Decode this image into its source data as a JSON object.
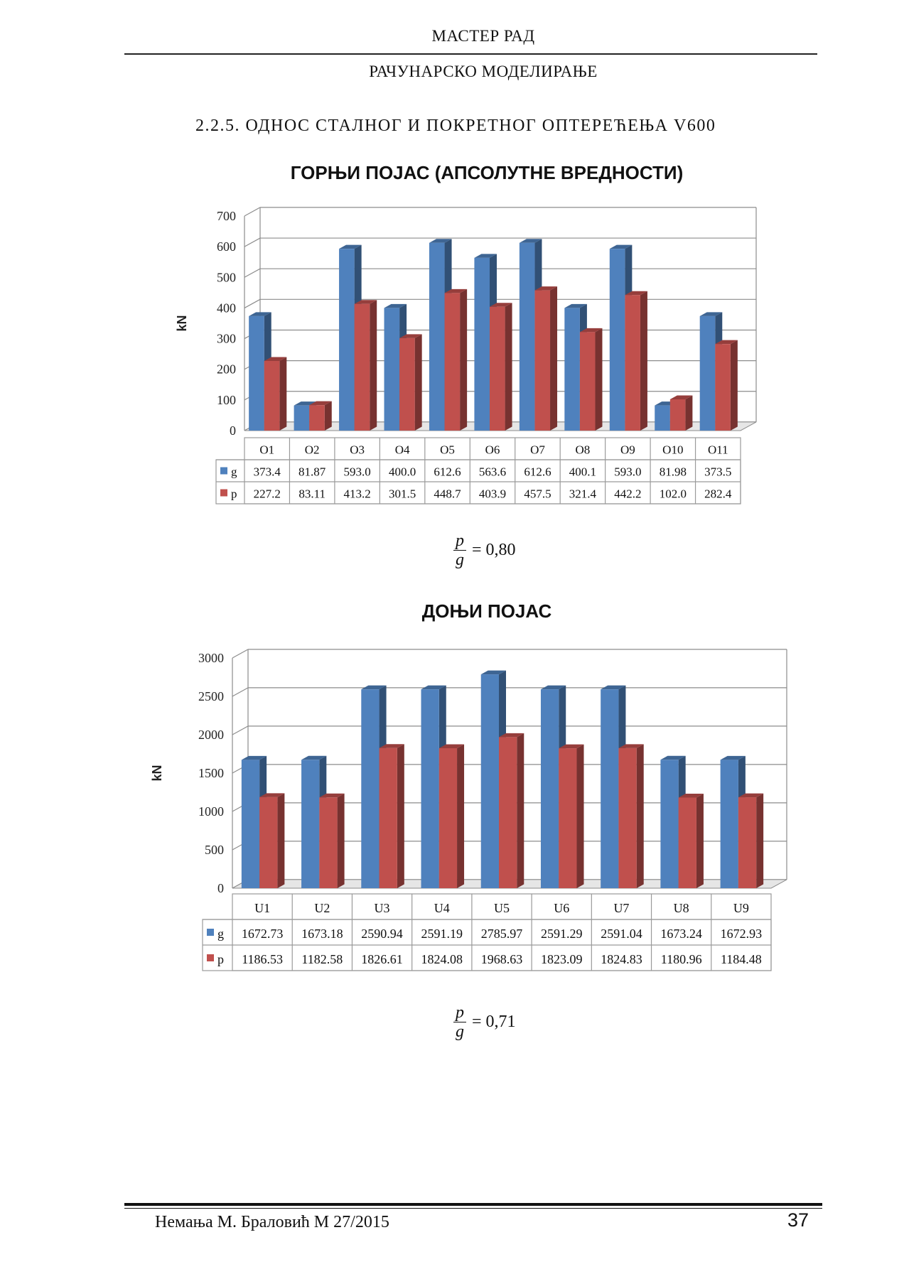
{
  "header": {
    "title": "МАСТЕР РАД",
    "subtitle": "РАЧУНАРСКО МОДЕЛИРАЊЕ"
  },
  "section_title": "2.2.5. ОДНОС СТАЛНОГ И ПОКРЕТНОГ ОПТЕРЕЋЕЊА V600",
  "colors": {
    "g": "#4f81bd",
    "p": "#c0504d"
  },
  "chart_data": [
    {
      "type": "bar",
      "title": "ГОРЊИ ПОЈАС (АПСОЛУТНЕ ВРЕДНОСТИ)",
      "ylabel": "kN",
      "ylim": [
        0,
        700
      ],
      "yticks": [
        "0",
        "100",
        "200",
        "300",
        "400",
        "500",
        "600",
        "700"
      ],
      "grid": true,
      "categories": [
        "O1",
        "O2",
        "O3",
        "O4",
        "O5",
        "O6",
        "O7",
        "O8",
        "O9",
        "O10",
        "O11"
      ],
      "series": [
        {
          "name": "g",
          "values": [
            373.4,
            81.87,
            593.0,
            400.0,
            612.6,
            563.6,
            612.6,
            400.1,
            593.0,
            81.98,
            373.5
          ],
          "labels": [
            "373.4",
            "81.87",
            "593.0",
            "400.0",
            "612.6",
            "563.6",
            "612.6",
            "400.1",
            "593.0",
            "81.98",
            "373.5"
          ]
        },
        {
          "name": "p",
          "values": [
            227.2,
            83.11,
            413.2,
            301.5,
            448.7,
            403.9,
            457.5,
            321.4,
            442.2,
            102.0,
            282.4
          ],
          "labels": [
            "227.2",
            "83.11",
            "413.2",
            "301.5",
            "448.7",
            "403.9",
            "457.5",
            "321.4",
            "442.2",
            "102.0",
            "282.4"
          ]
        }
      ]
    },
    {
      "type": "bar",
      "title": "ДОЊИ ПОЈАС",
      "ylabel": "kN",
      "ylim": [
        0,
        3000
      ],
      "yticks": [
        "0",
        "500",
        "1000",
        "1500",
        "2000",
        "2500",
        "3000"
      ],
      "grid": true,
      "categories": [
        "U1",
        "U2",
        "U3",
        "U4",
        "U5",
        "U6",
        "U7",
        "U8",
        "U9"
      ],
      "series": [
        {
          "name": "g",
          "values": [
            1672.73,
            1673.18,
            2590.94,
            2591.19,
            2785.97,
            2591.29,
            2591.04,
            1673.24,
            1672.93
          ],
          "labels": [
            "1672.73",
            "1673.18",
            "2590.94",
            "2591.19",
            "2785.97",
            "2591.29",
            "2591.04",
            "1673.24",
            "1672.93"
          ]
        },
        {
          "name": "p",
          "values": [
            1186.53,
            1182.58,
            1826.61,
            1824.08,
            1968.63,
            1823.09,
            1824.83,
            1180.96,
            1184.48
          ],
          "labels": [
            "1186.53",
            "1182.58",
            "1826.61",
            "1824.08",
            "1968.63",
            "1823.09",
            "1824.83",
            "1180.96",
            "1184.48"
          ]
        }
      ]
    }
  ],
  "formulas": [
    {
      "numerator": "p",
      "denominator": "g",
      "result": "= 0,80"
    },
    {
      "numerator": "p",
      "denominator": "g",
      "result": "= 0,71"
    }
  ],
  "footer": {
    "author": "Немања М. Браловић М 27/2015",
    "page": "37"
  }
}
